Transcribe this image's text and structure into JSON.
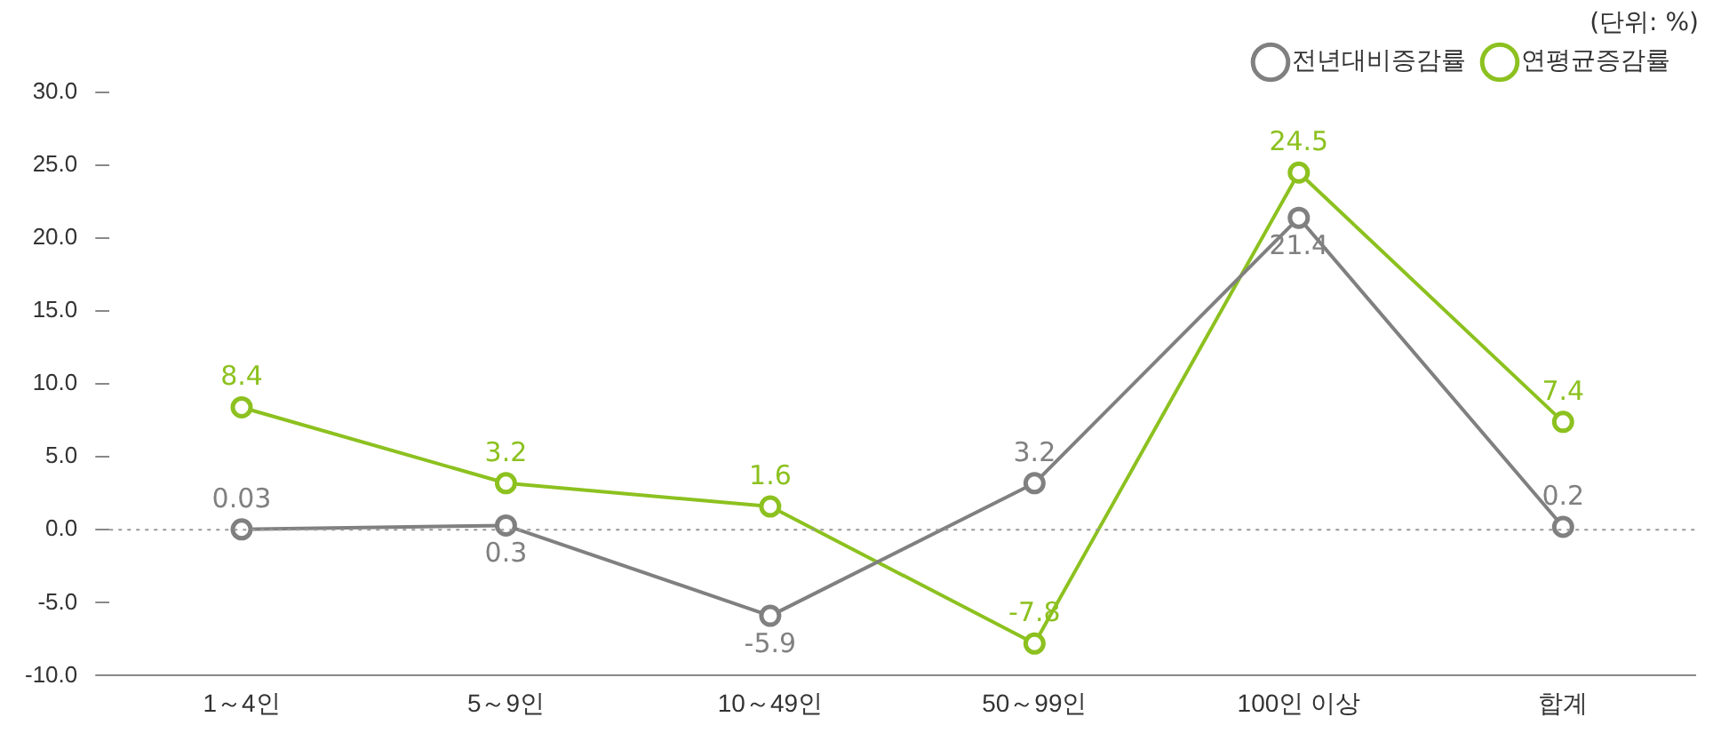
{
  "chart_data": {
    "type": "line",
    "categories": [
      "1～4인",
      "5～9인",
      "10～49인",
      "50～99인",
      "100인 이상",
      "합계"
    ],
    "series": [
      {
        "name": "전년대비증감률",
        "color": "#808080",
        "values": [
          0.03,
          0.3,
          -5.9,
          3.2,
          21.4,
          0.2
        ]
      },
      {
        "name": "연평균증감률",
        "color": "#8cc11f",
        "values": [
          8.4,
          3.2,
          1.6,
          -7.8,
          24.5,
          7.4
        ]
      }
    ],
    "ylim": [
      -10,
      30
    ],
    "yticks": [
      {
        "value": -10,
        "label": "-10.0"
      },
      {
        "value": -5,
        "label": "-5.0"
      },
      {
        "value": 0,
        "label": "0.0"
      },
      {
        "value": 5,
        "label": "5.0"
      },
      {
        "value": 10,
        "label": "10.0"
      },
      {
        "value": 15,
        "label": "15.0"
      },
      {
        "value": 20,
        "label": "20.0"
      },
      {
        "value": 25,
        "label": "25.0"
      },
      {
        "value": 30,
        "label": "30.0"
      }
    ],
    "ref_lines": [
      {
        "axis": "y",
        "value": 0,
        "color": "#999999",
        "line_style": "dotted"
      }
    ],
    "annotations": [
      "(단위: %)"
    ],
    "data_labels": true,
    "legend": "top right",
    "grid": false,
    "marker": "circle",
    "line_style": "solid"
  }
}
